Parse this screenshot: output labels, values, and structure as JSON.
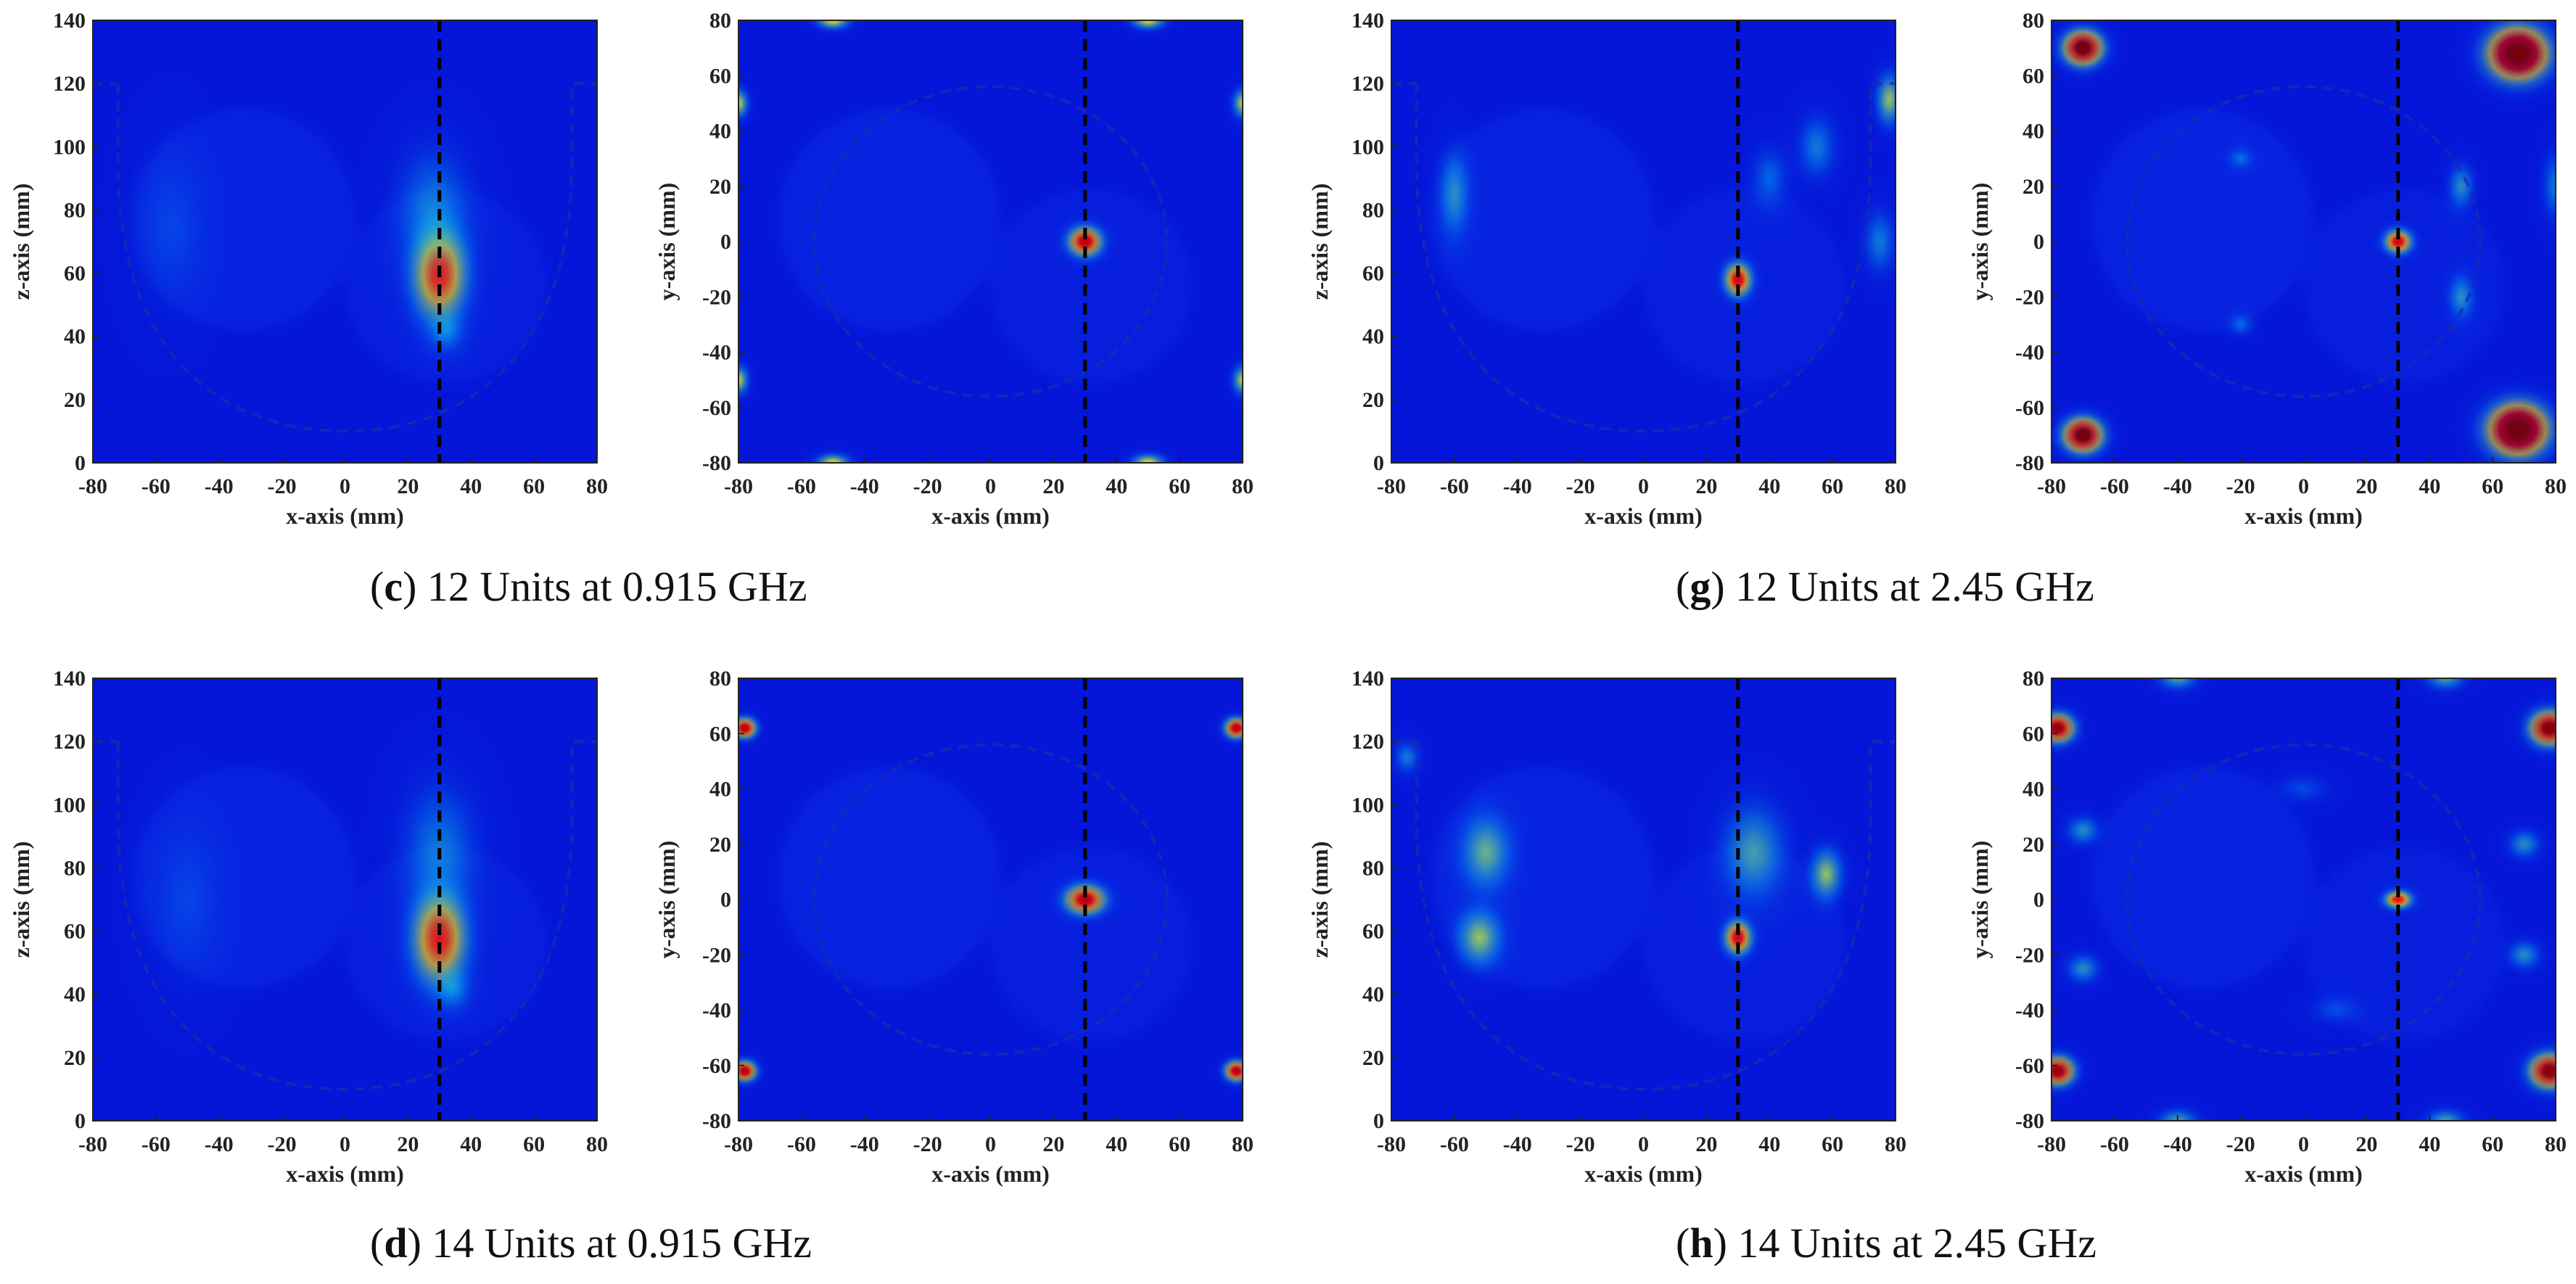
{
  "colormap": {
    "name": "jet",
    "stops": [
      "#00007f",
      "#0000ff",
      "#007fff",
      "#00ffff",
      "#7fff7f",
      "#ffff00",
      "#ff7f00",
      "#ff0000",
      "#7f0000"
    ]
  },
  "captions": [
    {
      "letter": "c",
      "text": "12 Units at 0.915 GHz"
    },
    {
      "letter": "g",
      "text": "12 Units at 2.45 GHz"
    },
    {
      "letter": "d",
      "text": "14 Units at 0.915 GHz"
    },
    {
      "letter": "h",
      "text": "14 Units at 2.45 GHz"
    }
  ],
  "chart_data": [
    {
      "type": "heatmap",
      "id": "c-xz",
      "group": "c",
      "xlabel": "x-axis (mm)",
      "ylabel": "z-axis (mm)",
      "xlim": [
        -80,
        80
      ],
      "ylim": [
        0,
        140
      ],
      "xticks": [
        -80,
        -60,
        -40,
        -20,
        0,
        20,
        40,
        60,
        80
      ],
      "yticks": [
        0,
        20,
        40,
        60,
        80,
        100,
        120,
        140
      ],
      "guide_line_x": 30,
      "outline": "bowl",
      "hotspots": [
        {
          "x": 30,
          "y": 60,
          "sx": 8,
          "sy": 14,
          "a": 0.85
        },
        {
          "x": 32,
          "y": 42,
          "sx": 6,
          "sy": 7,
          "a": 0.25
        },
        {
          "x": 28,
          "y": 80,
          "sx": 12,
          "sy": 20,
          "a": 0.25
        },
        {
          "x": -55,
          "y": 75,
          "sx": 12,
          "sy": 25,
          "a": 0.12
        }
      ]
    },
    {
      "type": "heatmap",
      "id": "c-xy",
      "group": "c",
      "xlabel": "x-axis (mm)",
      "ylabel": "y-axis (mm)",
      "xlim": [
        -80,
        80
      ],
      "ylim": [
        -80,
        80
      ],
      "xticks": [
        -80,
        -60,
        -40,
        -20,
        0,
        20,
        40,
        60,
        80
      ],
      "yticks": [
        -80,
        -60,
        -40,
        -20,
        0,
        20,
        40,
        60,
        80
      ],
      "guide_line_x": 30,
      "outline": "ring",
      "hotspots": [
        {
          "x": 30,
          "y": 0,
          "sx": 5,
          "sy": 5,
          "a": 0.95
        },
        {
          "x": -50,
          "y": 80,
          "sx": 5,
          "sy": 3,
          "a": 0.55
        },
        {
          "x": 50,
          "y": 80,
          "sx": 5,
          "sy": 3,
          "a": 0.55
        },
        {
          "x": -50,
          "y": -80,
          "sx": 5,
          "sy": 3,
          "a": 0.55
        },
        {
          "x": 50,
          "y": -80,
          "sx": 5,
          "sy": 3,
          "a": 0.55
        },
        {
          "x": -80,
          "y": 50,
          "sx": 3,
          "sy": 5,
          "a": 0.5
        },
        {
          "x": -80,
          "y": -50,
          "sx": 3,
          "sy": 5,
          "a": 0.5
        },
        {
          "x": 80,
          "y": 50,
          "sx": 3,
          "sy": 5,
          "a": 0.5
        },
        {
          "x": 80,
          "y": -50,
          "sx": 3,
          "sy": 5,
          "a": 0.5
        }
      ]
    },
    {
      "type": "heatmap",
      "id": "g-xz",
      "group": "g",
      "xlabel": "x-axis (mm)",
      "ylabel": "z-axis (mm)",
      "xlim": [
        -80,
        80
      ],
      "ylim": [
        0,
        140
      ],
      "xticks": [
        -80,
        -60,
        -40,
        -20,
        0,
        20,
        40,
        60,
        80
      ],
      "yticks": [
        0,
        20,
        40,
        60,
        80,
        100,
        120,
        140
      ],
      "guide_line_x": 30,
      "outline": "bowl",
      "hotspots": [
        {
          "x": 30,
          "y": 58,
          "sx": 4,
          "sy": 5,
          "a": 0.9
        },
        {
          "x": -60,
          "y": 85,
          "sx": 5,
          "sy": 14,
          "a": 0.3
        },
        {
          "x": 78,
          "y": 115,
          "sx": 4,
          "sy": 8,
          "a": 0.45
        },
        {
          "x": 55,
          "y": 100,
          "sx": 6,
          "sy": 10,
          "a": 0.25
        },
        {
          "x": 75,
          "y": 70,
          "sx": 5,
          "sy": 10,
          "a": 0.25
        },
        {
          "x": 40,
          "y": 90,
          "sx": 6,
          "sy": 10,
          "a": 0.2
        }
      ]
    },
    {
      "type": "heatmap",
      "id": "g-xy",
      "group": "g",
      "xlabel": "x-axis (mm)",
      "ylabel": "y-axis (mm)",
      "xlim": [
        -80,
        80
      ],
      "ylim": [
        -80,
        80
      ],
      "xticks": [
        -80,
        -60,
        -40,
        -20,
        0,
        20,
        40,
        60,
        80
      ],
      "yticks": [
        -80,
        -60,
        -40,
        -20,
        0,
        20,
        40,
        60,
        80
      ],
      "guide_line_x": 30,
      "outline": "ring",
      "hotspots": [
        {
          "x": 30,
          "y": 0,
          "sx": 4,
          "sy": 4,
          "a": 0.9
        },
        {
          "x": -70,
          "y": 70,
          "sx": 6,
          "sy": 6,
          "a": 1.1
        },
        {
          "x": -70,
          "y": -70,
          "sx": 6,
          "sy": 6,
          "a": 1.1
        },
        {
          "x": 68,
          "y": 68,
          "sx": 9,
          "sy": 9,
          "a": 1.3
        },
        {
          "x": 68,
          "y": -68,
          "sx": 9,
          "sy": 9,
          "a": 1.3
        },
        {
          "x": 50,
          "y": 20,
          "sx": 4,
          "sy": 8,
          "a": 0.3
        },
        {
          "x": 50,
          "y": -20,
          "sx": 4,
          "sy": 8,
          "a": 0.3
        },
        {
          "x": -20,
          "y": 30,
          "sx": 4,
          "sy": 4,
          "a": 0.2
        },
        {
          "x": -20,
          "y": -30,
          "sx": 4,
          "sy": 4,
          "a": 0.2
        },
        {
          "x": 80,
          "y": 20,
          "sx": 4,
          "sy": 12,
          "a": 0.25
        }
      ]
    },
    {
      "type": "heatmap",
      "id": "d-xz",
      "group": "d",
      "xlabel": "x-axis (mm)",
      "ylabel": "z-axis (mm)",
      "xlim": [
        -80,
        80
      ],
      "ylim": [
        0,
        140
      ],
      "xticks": [
        -80,
        -60,
        -40,
        -20,
        0,
        20,
        40,
        60,
        80
      ],
      "yticks": [
        0,
        20,
        40,
        60,
        80,
        100,
        120,
        140
      ],
      "guide_line_x": 30,
      "outline": "bowl",
      "hotspots": [
        {
          "x": 30,
          "y": 58,
          "sx": 8,
          "sy": 14,
          "a": 0.85
        },
        {
          "x": 34,
          "y": 42,
          "sx": 6,
          "sy": 7,
          "a": 0.25
        },
        {
          "x": 30,
          "y": 85,
          "sx": 12,
          "sy": 22,
          "a": 0.25
        },
        {
          "x": -50,
          "y": 70,
          "sx": 12,
          "sy": 25,
          "a": 0.12
        }
      ]
    },
    {
      "type": "heatmap",
      "id": "d-xy",
      "group": "d",
      "xlabel": "x-axis (mm)",
      "ylabel": "y-axis (mm)",
      "xlim": [
        -80,
        80
      ],
      "ylim": [
        -80,
        80
      ],
      "xticks": [
        -80,
        -60,
        -40,
        -20,
        0,
        20,
        40,
        60,
        80
      ],
      "yticks": [
        -80,
        -60,
        -40,
        -20,
        0,
        20,
        40,
        60,
        80
      ],
      "guide_line_x": 30,
      "outline": "ring",
      "hotspots": [
        {
          "x": 30,
          "y": 0,
          "sx": 6,
          "sy": 5,
          "a": 0.95
        },
        {
          "x": -78,
          "y": 62,
          "sx": 3.5,
          "sy": 3.5,
          "a": 0.95
        },
        {
          "x": 78,
          "y": 62,
          "sx": 3.5,
          "sy": 3.5,
          "a": 0.95
        },
        {
          "x": -78,
          "y": -62,
          "sx": 3.5,
          "sy": 3.5,
          "a": 0.95
        },
        {
          "x": 78,
          "y": -62,
          "sx": 3.5,
          "sy": 3.5,
          "a": 0.95
        }
      ]
    },
    {
      "type": "heatmap",
      "id": "h-xz",
      "group": "h",
      "xlabel": "x-axis (mm)",
      "ylabel": "z-axis (mm)",
      "xlim": [
        -80,
        80
      ],
      "ylim": [
        0,
        140
      ],
      "xticks": [
        -80,
        -60,
        -40,
        -20,
        0,
        20,
        40,
        60,
        80
      ],
      "yticks": [
        0,
        20,
        40,
        60,
        80,
        100,
        120,
        140
      ],
      "guide_line_x": 30,
      "outline": "bowl",
      "hotspots": [
        {
          "x": 30,
          "y": 58,
          "sx": 4,
          "sy": 5,
          "a": 0.9
        },
        {
          "x": -50,
          "y": 85,
          "sx": 8,
          "sy": 12,
          "a": 0.4
        },
        {
          "x": -52,
          "y": 58,
          "sx": 7,
          "sy": 9,
          "a": 0.45
        },
        {
          "x": 35,
          "y": 85,
          "sx": 10,
          "sy": 15,
          "a": 0.35
        },
        {
          "x": 58,
          "y": 78,
          "sx": 5,
          "sy": 8,
          "a": 0.45
        },
        {
          "x": -75,
          "y": 115,
          "sx": 4,
          "sy": 5,
          "a": 0.25
        }
      ]
    },
    {
      "type": "heatmap",
      "id": "h-xy",
      "group": "h",
      "xlabel": "x-axis (mm)",
      "ylabel": "y-axis (mm)",
      "xlim": [
        -80,
        80
      ],
      "ylim": [
        -80,
        80
      ],
      "xticks": [
        -80,
        -60,
        -40,
        -20,
        0,
        20,
        40,
        60,
        80
      ],
      "yticks": [
        -80,
        -60,
        -40,
        -20,
        0,
        20,
        40,
        60,
        80
      ],
      "guide_line_x": 30,
      "outline": "ring",
      "hotspots": [
        {
          "x": 30,
          "y": 0,
          "sx": 4,
          "sy": 3,
          "a": 0.85
        },
        {
          "x": -78,
          "y": 62,
          "sx": 5,
          "sy": 5,
          "a": 1.0
        },
        {
          "x": 78,
          "y": 62,
          "sx": 6,
          "sy": 6,
          "a": 1.05
        },
        {
          "x": -78,
          "y": -62,
          "sx": 5,
          "sy": 5,
          "a": 1.0
        },
        {
          "x": 78,
          "y": -62,
          "sx": 6,
          "sy": 6,
          "a": 1.05
        },
        {
          "x": -40,
          "y": 80,
          "sx": 6,
          "sy": 4,
          "a": 0.35
        },
        {
          "x": 45,
          "y": 80,
          "sx": 6,
          "sy": 4,
          "a": 0.35
        },
        {
          "x": -40,
          "y": -80,
          "sx": 6,
          "sy": 4,
          "a": 0.35
        },
        {
          "x": 45,
          "y": -80,
          "sx": 6,
          "sy": 4,
          "a": 0.35
        },
        {
          "x": 70,
          "y": 20,
          "sx": 5,
          "sy": 5,
          "a": 0.3
        },
        {
          "x": 70,
          "y": -20,
          "sx": 5,
          "sy": 5,
          "a": 0.3
        },
        {
          "x": -70,
          "y": 25,
          "sx": 5,
          "sy": 5,
          "a": 0.3
        },
        {
          "x": -70,
          "y": -25,
          "sx": 5,
          "sy": 5,
          "a": 0.3
        },
        {
          "x": 0,
          "y": 40,
          "sx": 8,
          "sy": 5,
          "a": 0.15
        },
        {
          "x": 10,
          "y": -40,
          "sx": 8,
          "sy": 5,
          "a": 0.15
        }
      ]
    }
  ]
}
